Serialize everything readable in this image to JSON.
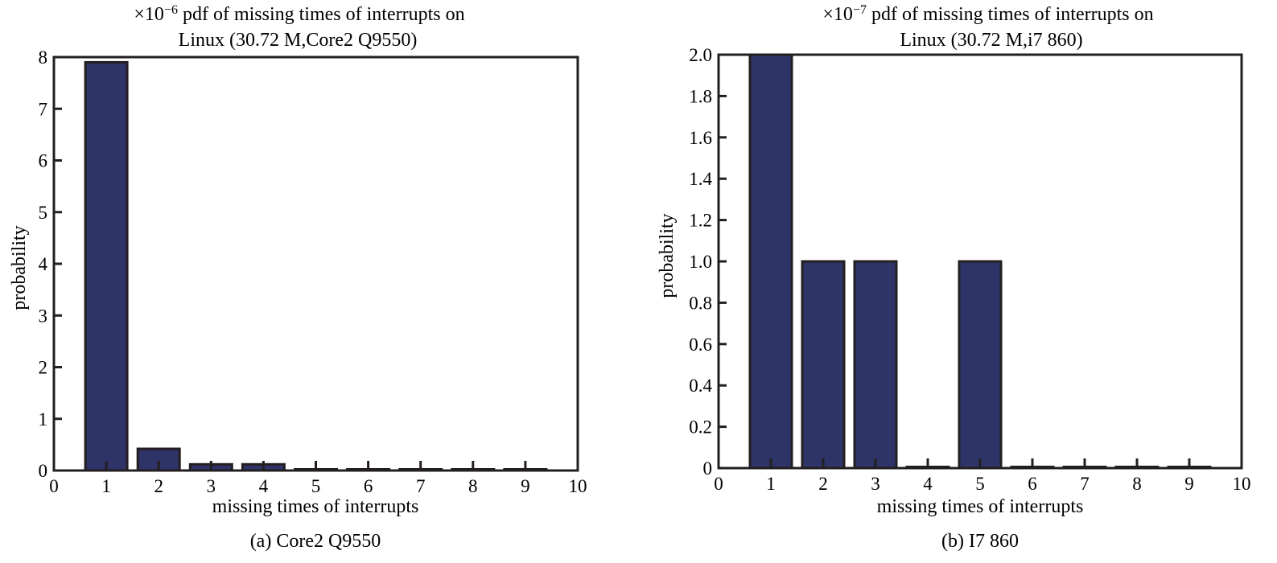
{
  "chart_data": [
    {
      "type": "bar",
      "title_multiplier": "×10",
      "title_exponent": "−6",
      "title_line1": " pdf of missing times of interrupts on",
      "title_line2": "Linux (30.72 M,Core2 Q9550)",
      "xlabel": "missing times of interrupts",
      "ylabel": "probability",
      "caption": "(a) Core2 Q9550",
      "xlim": [
        0,
        10
      ],
      "ylim": [
        0,
        8
      ],
      "xticks": [
        "0",
        "1",
        "2",
        "3",
        "4",
        "5",
        "6",
        "7",
        "8",
        "9",
        "10"
      ],
      "yticks": [
        "0",
        "1",
        "2",
        "3",
        "4",
        "5",
        "6",
        "7",
        "8"
      ],
      "categories": [
        1,
        2,
        3,
        4,
        5,
        6,
        7,
        8,
        9
      ],
      "values": [
        7.9,
        0.42,
        0.12,
        0.12,
        0,
        0,
        0,
        0,
        0
      ],
      "grid": false
    },
    {
      "type": "bar",
      "title_multiplier": "×10",
      "title_exponent": "−7",
      "title_line1": " pdf of missing times of interrupts on",
      "title_line2": "Linux (30.72 M,i7 860)",
      "xlabel": "missing times of interrupts",
      "ylabel": "probability",
      "caption": "(b) I7 860",
      "xlim": [
        0,
        10
      ],
      "ylim": [
        0,
        2.0
      ],
      "xticks": [
        "0",
        "1",
        "2",
        "3",
        "4",
        "5",
        "6",
        "7",
        "8",
        "9",
        "10"
      ],
      "yticks": [
        "0",
        "0.2",
        "0.4",
        "0.6",
        "0.8",
        "1.0",
        "1.2",
        "1.4",
        "1.6",
        "1.8",
        "2.0"
      ],
      "categories": [
        1,
        2,
        3,
        4,
        5,
        6,
        7,
        8,
        9
      ],
      "values": [
        2.0,
        1.0,
        1.0,
        0,
        1.0,
        0,
        0,
        0,
        0
      ],
      "grid": false
    }
  ],
  "colors": {
    "bar_fill": "#2e3468",
    "stroke": "#231f20"
  }
}
